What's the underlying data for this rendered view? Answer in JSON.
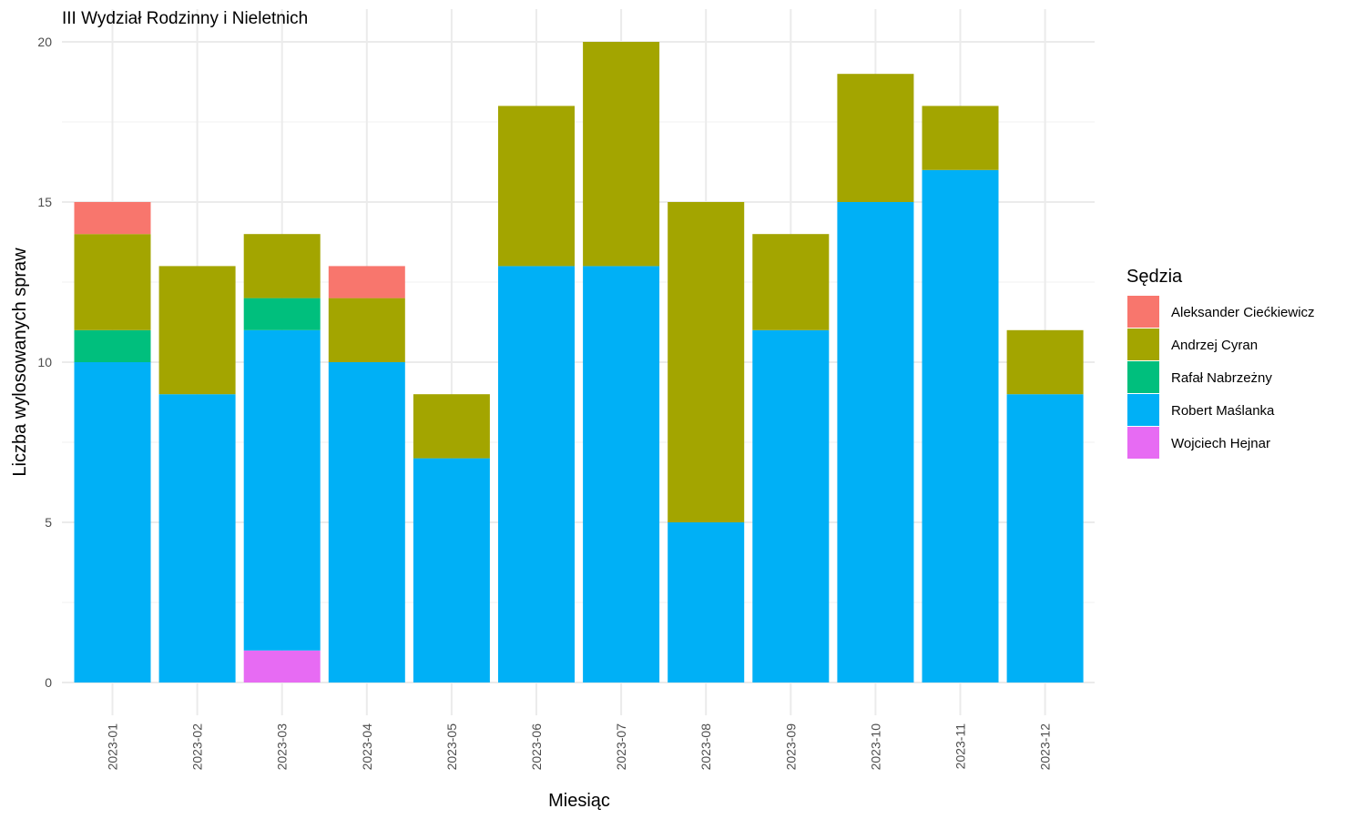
{
  "chart_data": {
    "type": "bar",
    "stacked": true,
    "title": "III Wydział Rodzinny i Nieletnich",
    "xlabel": "Miesiąc",
    "ylabel": "Liczba wylosowanych spraw",
    "ylim": [
      0,
      20
    ],
    "yticks": [
      "0",
      "5",
      "10",
      "15",
      "20"
    ],
    "grid": true,
    "legend": {
      "title": "Sędzia",
      "position": "right"
    },
    "categories": [
      "2023-01",
      "2023-02",
      "2023-03",
      "2023-04",
      "2023-05",
      "2023-06",
      "2023-07",
      "2023-08",
      "2023-09",
      "2023-10",
      "2023-11",
      "2023-12"
    ],
    "series": [
      {
        "name": "Aleksander Ciećkiewicz",
        "color": "#F8766D",
        "values": [
          1,
          0,
          0,
          1,
          0,
          0,
          0,
          0,
          0,
          0,
          0,
          0
        ]
      },
      {
        "name": "Andrzej Cyran",
        "color": "#A3A500",
        "values": [
          3,
          4,
          2,
          2,
          2,
          5,
          7,
          10,
          3,
          4,
          2,
          2
        ]
      },
      {
        "name": "Rafał Nabrzeżny",
        "color": "#00BF7D",
        "values": [
          1,
          0,
          1,
          0,
          0,
          0,
          0,
          0,
          0,
          0,
          0,
          0
        ]
      },
      {
        "name": "Robert Maślanka",
        "color": "#00B0F6",
        "values": [
          10,
          9,
          10,
          10,
          7,
          13,
          13,
          5,
          11,
          15,
          16,
          9
        ]
      },
      {
        "name": "Wojciech Hejnar",
        "color": "#E76BF3",
        "values": [
          0,
          0,
          1,
          0,
          0,
          0,
          0,
          0,
          0,
          0,
          0,
          0
        ]
      }
    ]
  }
}
